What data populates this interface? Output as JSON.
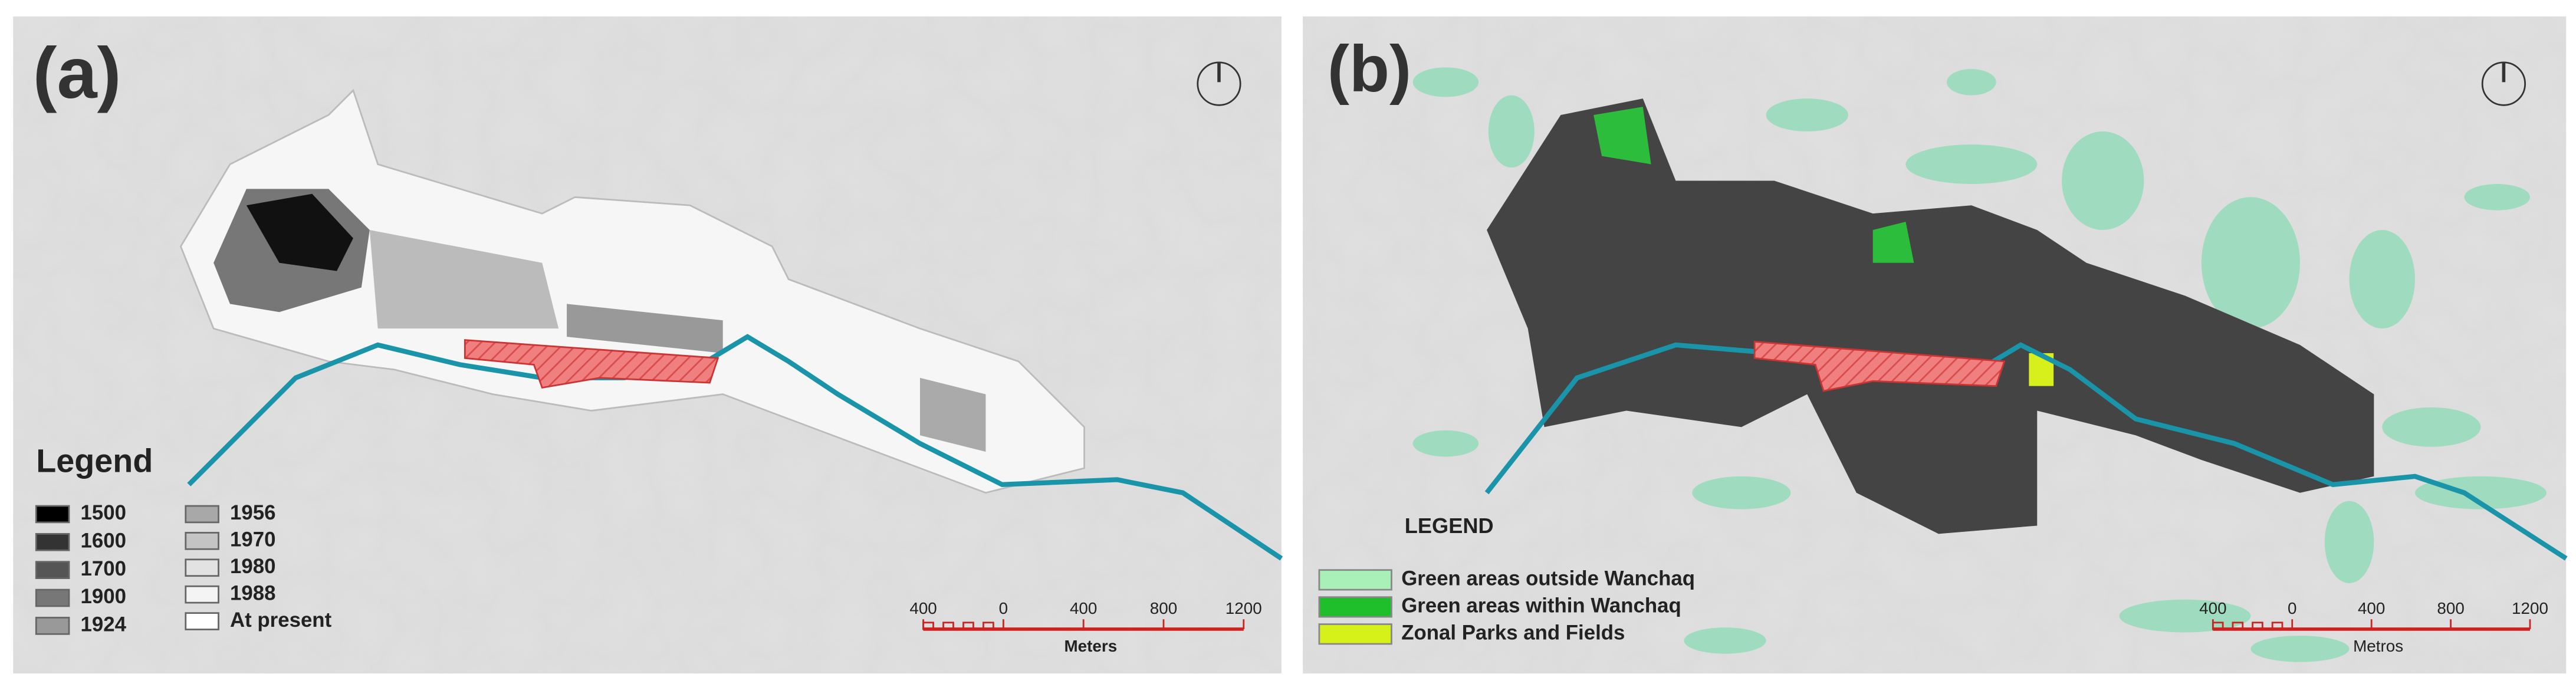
{
  "panel_a": {
    "label": "(a)",
    "legend_title": "Legend",
    "legend_items": [
      "1500",
      "1600",
      "1700",
      "1900",
      "1924",
      "1956",
      "1970",
      "1980",
      "1988",
      "At present"
    ],
    "scale_labels": [
      "400",
      "0",
      "400",
      "800",
      "1200"
    ],
    "scale_unit": "Meters"
  },
  "panel_b": {
    "label": "(b)",
    "legend_title": "LEGEND",
    "legend_items": [
      "Green areas outside Wanchaq",
      "Green areas within Wanchaq",
      "Zonal Parks and Fields"
    ],
    "scale_labels": [
      "400",
      "0",
      "400",
      "800",
      "1200"
    ],
    "scale_unit": "Metros"
  }
}
